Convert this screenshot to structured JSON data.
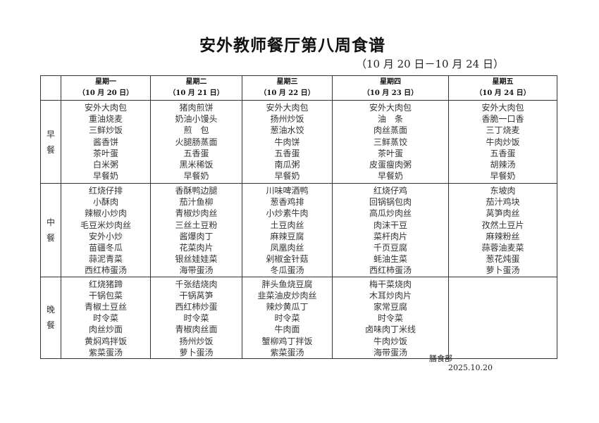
{
  "title": "安外教师餐厅第八周食谱",
  "subtitle": "（10 月 20 日－10 月 24 日）",
  "days": [
    {
      "name": "星期一",
      "date": "（10 月 20 日）"
    },
    {
      "name": "星期二",
      "date": "（10 月 21 日）"
    },
    {
      "name": "星期三",
      "date": "（10 月 22 日）"
    },
    {
      "name": "星期四",
      "date": "（10 月 23 日）"
    },
    {
      "name": "星期五",
      "date": "（10 月 24 日）"
    }
  ],
  "meals": [
    {
      "label": "早餐",
      "items": [
        [
          "安外大肉包",
          "重油烧麦",
          "三鲜炒饭",
          "酱香饼",
          "茶叶蛋",
          "白米粥",
          "早餐奶"
        ],
        [
          "猪肉煎饼",
          "奶油小馒头",
          "煎　包",
          "火腿肠蒸面",
          "五香蛋",
          "黑米稀饭",
          "早餐奶"
        ],
        [
          "安外大肉包",
          "扬州炒饭",
          "葱油水饺",
          "牛肉饼",
          "五香蛋",
          "南瓜粥",
          "早餐奶"
        ],
        [
          "安外大肉包",
          "油　条",
          "肉丝蒸面",
          "三鲜蒸饺",
          "茶叶蛋",
          "皮蛋瘦肉粥",
          "早餐奶"
        ],
        [
          "安外大肉包",
          "香脆一口香",
          "三丁烧麦",
          "牛肉炒饭",
          "五香蛋",
          "胡辣汤",
          "早餐奶"
        ]
      ]
    },
    {
      "label": "中餐",
      "items": [
        [
          "红烧仔排",
          "小酥肉",
          "辣椒小炒肉",
          "毛豆米炒肉丝",
          "安外小炒",
          "苗疆冬瓜",
          "蒜泥青菜",
          "西红柿蛋汤"
        ],
        [
          "香酥鸭边腿",
          "茄汁鱼柳",
          "青椒炒肉丝",
          "三丝土豆粉",
          "酱爆肉丁",
          "花菜肉片",
          "银丝娃娃菜",
          "海带蛋汤"
        ],
        [
          "川味啤酒鸭",
          "葱香鸡排",
          "小炒素牛肉",
          "土豆肉丝",
          "麻辣豆腐",
          "凤凰肉丝",
          "剁椒金针菇",
          "冬瓜蛋汤"
        ],
        [
          "红烧仔鸡",
          "回锅锅包肉",
          "高瓜炒肉丝",
          "肉沫干豆",
          "菜杆肉片",
          "千页豆腐",
          "蚝油生菜",
          "西红柿蛋汤"
        ],
        [
          "东坡肉",
          "茄汁鸡块",
          "莴笋肉丝",
          "孜然土豆片",
          "麻辣粉丝",
          "蒜蓉油麦菜",
          "葱花炖蛋",
          "萝卜蛋汤"
        ]
      ]
    },
    {
      "label": "晚餐",
      "items": [
        [
          "红烧猪蹄",
          "干锅包菜",
          "青椒土豆丝",
          "时令菜",
          "肉丝炒面",
          "黄焖鸡拌饭",
          "紫菜蛋汤"
        ],
        [
          "千张结烧肉",
          "干锅莴笋",
          "西红柿炒蛋",
          "时令菜",
          "青椒肉丝面",
          "扬州炒饭",
          "萝卜蛋汤"
        ],
        [
          "胖头鱼烧豆腐",
          "韭菜油皮炒肉丝",
          "辣炒黄瓜丁",
          "时令菜",
          "牛肉面",
          "蟹柳鸡丁拌饭",
          "紫菜蛋汤"
        ],
        [
          "梅干菜烧肉",
          "木耳炒肉片",
          "家常豆腐",
          "时令菜",
          "卤味肉丁米线",
          "牛肉炒饭",
          "海带蛋汤"
        ],
        []
      ]
    }
  ],
  "footer": {
    "department": "膳食部",
    "date": "2025.10.20"
  }
}
